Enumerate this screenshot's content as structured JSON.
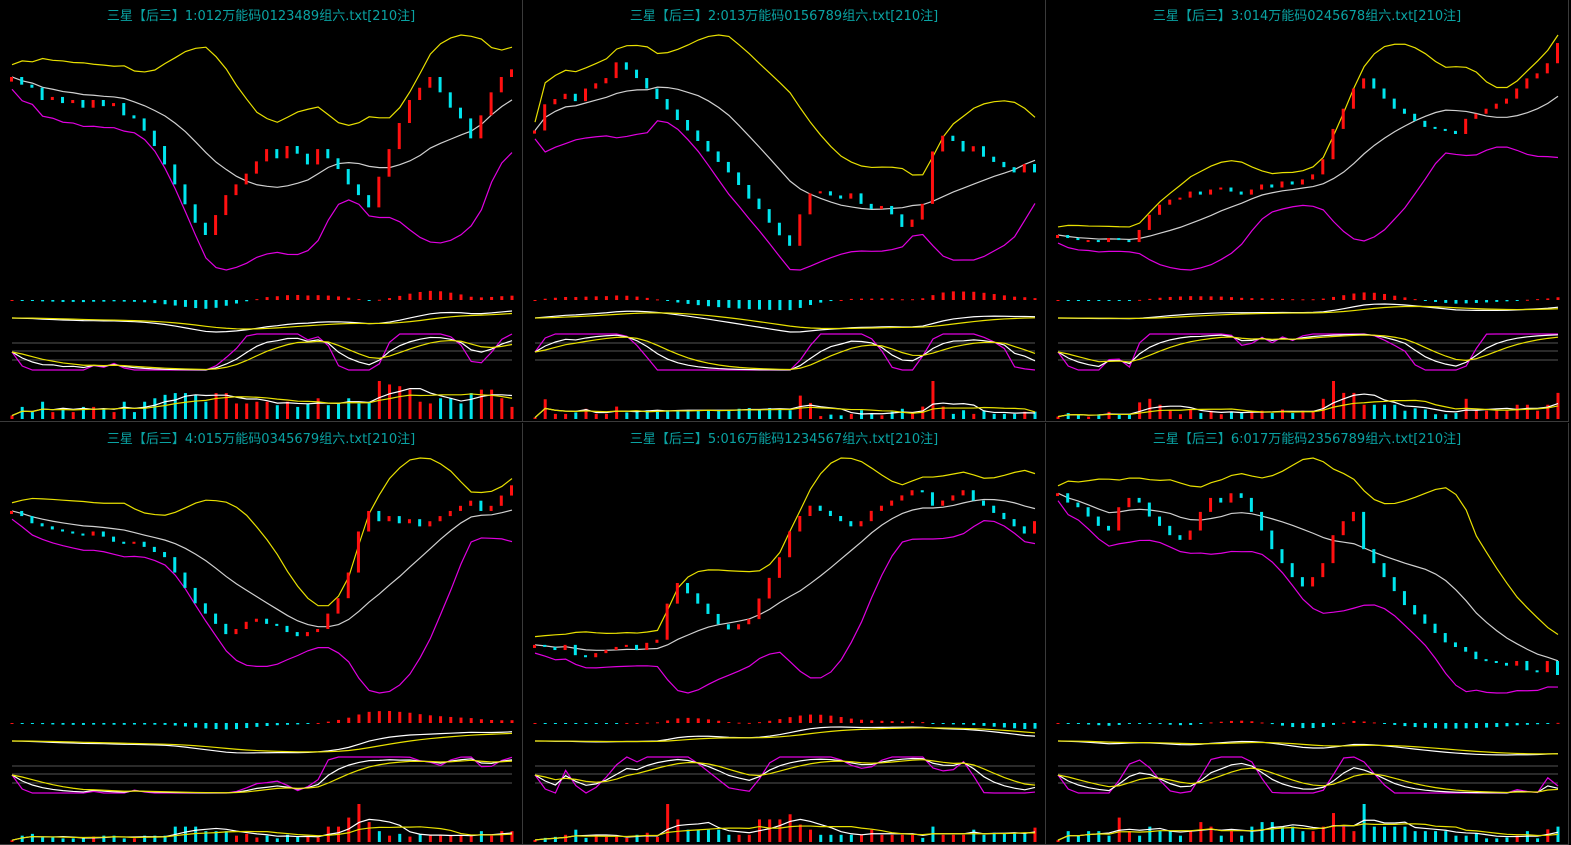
{
  "colors": {
    "up": "#ff1010",
    "down": "#00e5ee",
    "mid": "#d0d0d0",
    "upper": "#e8e000",
    "lower": "#e000e0",
    "dif": "#ffffff",
    "dea": "#e8e000",
    "grid": "#555555",
    "title": "#0aa3a3"
  },
  "chart_data": [
    {
      "type": "candlestick",
      "title": "三星【后三】1:012万能码0123489组六.txt[210注]",
      "close": [
        165,
        160,
        158,
        150,
        152,
        148,
        150,
        145,
        150,
        146,
        148,
        140,
        138,
        130,
        120,
        108,
        95,
        82,
        70,
        62,
        75,
        88,
        95,
        102,
        110,
        118,
        112,
        120,
        115,
        108,
        118,
        112,
        105,
        95,
        88,
        80,
        100,
        118,
        135,
        150,
        158,
        165,
        155,
        145,
        138,
        125,
        140,
        155,
        165,
        170
      ]
    },
    {
      "type": "candlestick",
      "title": "三星【后三】2:013万能码0156789组六.txt[210注]",
      "close": [
        170,
        195,
        200,
        205,
        198,
        210,
        215,
        220,
        235,
        228,
        220,
        210,
        200,
        190,
        180,
        170,
        160,
        150,
        140,
        130,
        118,
        105,
        95,
        82,
        70,
        60,
        90,
        110,
        112,
        108,
        105,
        110,
        100,
        95,
        98,
        90,
        78,
        85,
        100,
        150,
        165,
        160,
        150,
        155,
        145,
        140,
        135,
        130,
        138,
        130
      ]
    },
    {
      "type": "candlestick",
      "title": "三星【后三】3:014万能码0245678组六.txt[210注]",
      "close": [
        65,
        62,
        60,
        60,
        58,
        62,
        60,
        58,
        70,
        85,
        95,
        100,
        102,
        108,
        105,
        110,
        112,
        108,
        105,
        110,
        115,
        112,
        118,
        115,
        120,
        125,
        140,
        170,
        190,
        210,
        220,
        210,
        200,
        190,
        185,
        178,
        172,
        170,
        168,
        165,
        180,
        185,
        190,
        195,
        200,
        210,
        220,
        225,
        235,
        255
      ]
    },
    {
      "type": "candlestick",
      "title": "三星【后三】4:015万能码0345679组六.txt[210注]",
      "close": [
        190,
        185,
        178,
        175,
        172,
        170,
        168,
        166,
        170,
        165,
        160,
        158,
        160,
        155,
        150,
        145,
        130,
        115,
        100,
        90,
        80,
        70,
        75,
        82,
        85,
        80,
        78,
        72,
        68,
        72,
        75,
        90,
        105,
        130,
        170,
        190,
        180,
        185,
        178,
        182,
        175,
        180,
        185,
        190,
        195,
        200,
        190,
        195,
        205,
        215
      ]
    },
    {
      "type": "candlestick",
      "title": "三星【后三】5:016万能码1234567组六.txt[210注]",
      "close": [
        90,
        88,
        85,
        90,
        80,
        78,
        82,
        85,
        88,
        90,
        85,
        92,
        95,
        130,
        150,
        140,
        130,
        120,
        110,
        105,
        110,
        115,
        135,
        155,
        175,
        200,
        215,
        225,
        220,
        215,
        210,
        205,
        210,
        220,
        225,
        230,
        235,
        240,
        238,
        225,
        230,
        235,
        240,
        230,
        225,
        218,
        212,
        205,
        198,
        210
      ]
    },
    {
      "type": "candlestick",
      "title": "三星【后三】6:017万能码2356789组六.txt[210注]",
      "close": [
        240,
        230,
        225,
        215,
        205,
        200,
        225,
        235,
        230,
        215,
        205,
        195,
        190,
        200,
        220,
        235,
        230,
        240,
        235,
        220,
        200,
        180,
        165,
        150,
        140,
        150,
        165,
        195,
        210,
        220,
        180,
        165,
        150,
        135,
        120,
        110,
        100,
        90,
        80,
        75,
        70,
        62,
        60,
        58,
        55,
        60,
        50,
        48,
        60,
        45
      ]
    }
  ]
}
